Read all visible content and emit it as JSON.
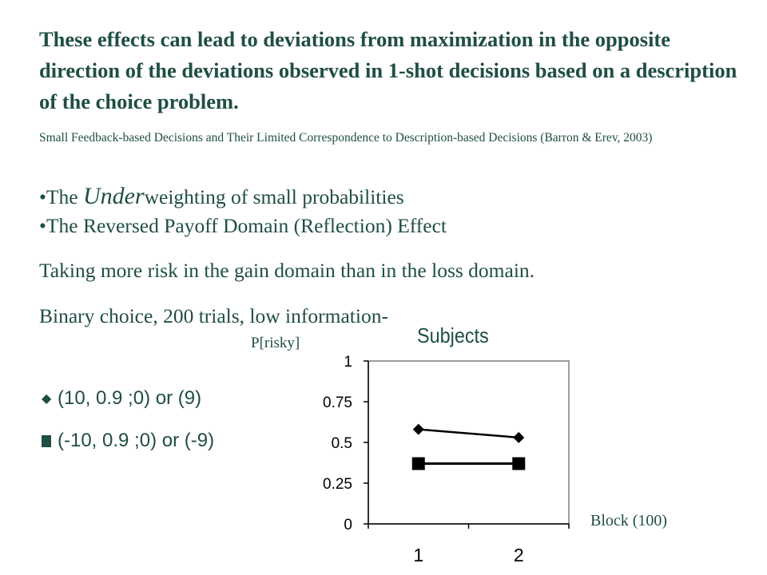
{
  "heading": "These effects can lead to deviations from maximization in the opposite direction of the deviations observed in 1-shot decisions based on a description of the choice problem.",
  "citation": "Small Feedback-based Decisions and Their Limited Correspondence to Description-based Decisions (Barron & Erev, 2003)",
  "bullets": {
    "b1_prefix": "•The ",
    "b1_em": "Under",
    "b1_suffix": "weighting of small probabilities",
    "b2": "•The Reversed Payoff Domain (Reflection) Effect"
  },
  "text_lines": {
    "t1": "Taking more risk in the gain domain than in the loss domain.",
    "t2": "Binary choice, 200 trials, low information-"
  },
  "legend": {
    "diamond_symbol": "◆",
    "item1": "(10, 0.9 ;0) or (9)",
    "item2": "(-10, 0.9 ;0) or (-9)"
  },
  "colors": {
    "text": "#1f4e44",
    "plot": "#000000"
  },
  "chart_data": {
    "type": "line",
    "title": "Subjects",
    "ylabel": "P[risky]",
    "xlabel": "Block (100)",
    "categories": [
      "1",
      "2"
    ],
    "y_ticks": [
      "0",
      "0.25",
      "0.5",
      "0.75",
      "1"
    ],
    "ylim": [
      0,
      1
    ],
    "series": [
      {
        "name": "(10, 0.9 ;0) or (9)",
        "marker": "diamond",
        "values": [
          0.58,
          0.53
        ]
      },
      {
        "name": "(-10, 0.9 ;0) or (-9)",
        "marker": "square",
        "values": [
          0.37,
          0.37
        ]
      }
    ]
  }
}
